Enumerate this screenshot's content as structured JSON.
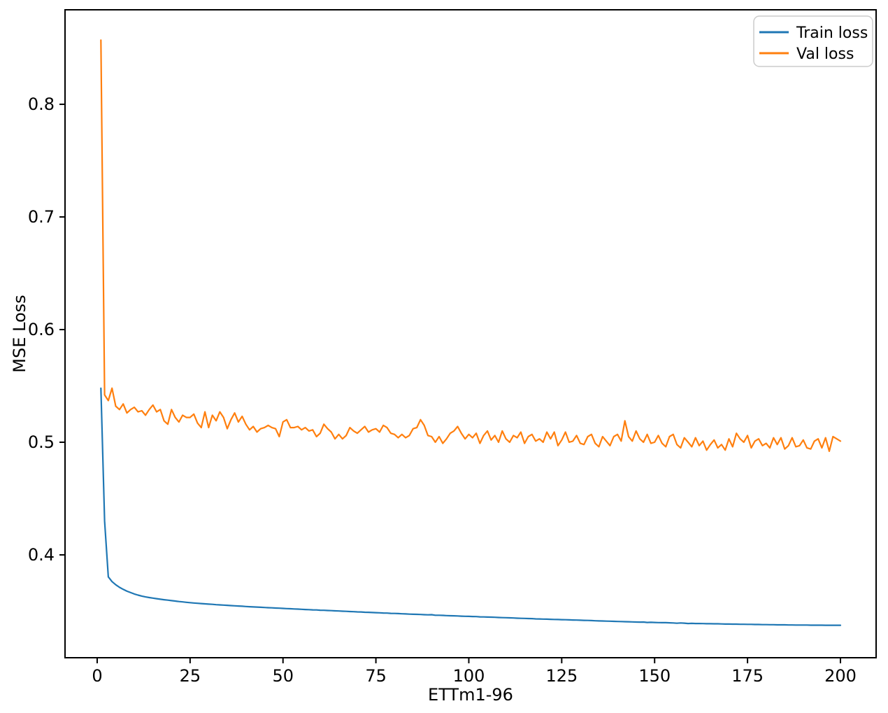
{
  "figure": {
    "background": "#ffffff",
    "text_color": "#000000",
    "spine_color": "#000000",
    "legend_border_color": "#cccccc"
  },
  "chart_data": {
    "type": "line",
    "title": "",
    "xlabel": "ETTm1-96",
    "ylabel": "MSE Loss",
    "xlim": [
      -8.65,
      209.6
    ],
    "ylim": [
      0.3087,
      0.8839
    ],
    "xticks": [
      0,
      25,
      50,
      75,
      100,
      125,
      150,
      175,
      200
    ],
    "yticks": [
      0.4,
      0.5,
      0.6,
      0.7,
      0.8
    ],
    "grid": false,
    "legend_position": "upper right",
    "x": {
      "start": 1,
      "step": 1,
      "count": 200
    },
    "series": [
      {
        "name": "Train loss",
        "color": "#1f77b4",
        "values": [
          0.548,
          0.43,
          0.3805,
          0.3763,
          0.3735,
          0.3712,
          0.3694,
          0.3678,
          0.3665,
          0.3653,
          0.3643,
          0.3634,
          0.3627,
          0.3621,
          0.3616,
          0.3611,
          0.3606,
          0.3602,
          0.3598,
          0.3594,
          0.359,
          0.3586,
          0.3583,
          0.3579,
          0.3576,
          0.3573,
          0.357,
          0.3568,
          0.3565,
          0.3563,
          0.3561,
          0.3558,
          0.3556,
          0.3554,
          0.3552,
          0.355,
          0.3548,
          0.3546,
          0.3544,
          0.3542,
          0.354,
          0.3538,
          0.3537,
          0.3535,
          0.3533,
          0.3531,
          0.353,
          0.3528,
          0.3527,
          0.3525,
          0.3523,
          0.3522,
          0.352,
          0.3519,
          0.3517,
          0.3515,
          0.3514,
          0.3512,
          0.3511,
          0.3509,
          0.3508,
          0.3506,
          0.3505,
          0.3503,
          0.3502,
          0.35,
          0.3499,
          0.3497,
          0.3496,
          0.3494,
          0.3493,
          0.3491,
          0.349,
          0.3488,
          0.3487,
          0.3486,
          0.3484,
          0.3483,
          0.3481,
          0.348,
          0.3479,
          0.3477,
          0.3476,
          0.3474,
          0.3473,
          0.3472,
          0.3471,
          0.3469,
          0.3468,
          0.3469,
          0.3464,
          0.3464,
          0.3463,
          0.3461,
          0.346,
          0.3459,
          0.3458,
          0.3456,
          0.3455,
          0.3454,
          0.3453,
          0.3452,
          0.345,
          0.3449,
          0.3448,
          0.3447,
          0.3446,
          0.3444,
          0.3443,
          0.3442,
          0.3441,
          0.344,
          0.3438,
          0.3437,
          0.3436,
          0.3435,
          0.3434,
          0.3432,
          0.3431,
          0.343,
          0.3429,
          0.3428,
          0.3427,
          0.3426,
          0.3425,
          0.3424,
          0.3423,
          0.3422,
          0.3421,
          0.342,
          0.3419,
          0.3418,
          0.3417,
          0.3415,
          0.3414,
          0.3413,
          0.3412,
          0.3411,
          0.341,
          0.3409,
          0.3408,
          0.3407,
          0.3406,
          0.3405,
          0.3404,
          0.3403,
          0.3404,
          0.34,
          0.3401,
          0.34,
          0.3399,
          0.3398,
          0.3398,
          0.3397,
          0.3396,
          0.3393,
          0.3396,
          0.3394,
          0.3391,
          0.3392,
          0.3391,
          0.3391,
          0.339,
          0.3389,
          0.3389,
          0.3388,
          0.3388,
          0.3387,
          0.3386,
          0.3386,
          0.3385,
          0.3385,
          0.3384,
          0.3384,
          0.3383,
          0.3383,
          0.3382,
          0.3382,
          0.3381,
          0.3381,
          0.338,
          0.338,
          0.3379,
          0.3379,
          0.3379,
          0.3378,
          0.3378,
          0.3377,
          0.3377,
          0.3377,
          0.3377,
          0.3376,
          0.3376,
          0.3376,
          0.3376,
          0.3375,
          0.3375,
          0.3375,
          0.3375,
          0.3375
        ]
      },
      {
        "name": "Val loss",
        "color": "#ff7f0e",
        "values": [
          0.857,
          0.542,
          0.537,
          0.548,
          0.532,
          0.529,
          0.534,
          0.526,
          0.529,
          0.531,
          0.527,
          0.528,
          0.524,
          0.529,
          0.533,
          0.527,
          0.529,
          0.519,
          0.516,
          0.529,
          0.522,
          0.518,
          0.524,
          0.522,
          0.522,
          0.525,
          0.517,
          0.513,
          0.527,
          0.513,
          0.524,
          0.519,
          0.527,
          0.522,
          0.512,
          0.52,
          0.526,
          0.518,
          0.523,
          0.516,
          0.511,
          0.514,
          0.509,
          0.512,
          0.513,
          0.515,
          0.513,
          0.512,
          0.505,
          0.518,
          0.52,
          0.513,
          0.513,
          0.514,
          0.511,
          0.513,
          0.51,
          0.511,
          0.505,
          0.508,
          0.516,
          0.512,
          0.509,
          0.503,
          0.507,
          0.503,
          0.506,
          0.513,
          0.51,
          0.508,
          0.511,
          0.514,
          0.509,
          0.511,
          0.512,
          0.509,
          0.515,
          0.513,
          0.508,
          0.507,
          0.504,
          0.507,
          0.504,
          0.506,
          0.512,
          0.513,
          0.52,
          0.515,
          0.506,
          0.505,
          0.5,
          0.505,
          0.499,
          0.503,
          0.508,
          0.51,
          0.514,
          0.508,
          0.503,
          0.507,
          0.504,
          0.508,
          0.499,
          0.506,
          0.51,
          0.502,
          0.506,
          0.5,
          0.51,
          0.503,
          0.5,
          0.506,
          0.504,
          0.509,
          0.499,
          0.505,
          0.507,
          0.501,
          0.503,
          0.5,
          0.509,
          0.503,
          0.509,
          0.497,
          0.502,
          0.509,
          0.5,
          0.501,
          0.506,
          0.499,
          0.498,
          0.505,
          0.507,
          0.499,
          0.496,
          0.505,
          0.501,
          0.497,
          0.505,
          0.507,
          0.501,
          0.519,
          0.505,
          0.501,
          0.51,
          0.503,
          0.5,
          0.507,
          0.499,
          0.5,
          0.506,
          0.499,
          0.496,
          0.505,
          0.507,
          0.498,
          0.495,
          0.504,
          0.5,
          0.496,
          0.504,
          0.497,
          0.501,
          0.493,
          0.498,
          0.502,
          0.495,
          0.498,
          0.493,
          0.503,
          0.496,
          0.508,
          0.503,
          0.5,
          0.506,
          0.495,
          0.501,
          0.503,
          0.497,
          0.499,
          0.495,
          0.504,
          0.498,
          0.504,
          0.494,
          0.497,
          0.504,
          0.496,
          0.497,
          0.502,
          0.495,
          0.494,
          0.501,
          0.503,
          0.495,
          0.504,
          0.492,
          0.505,
          0.503,
          0.501
        ]
      }
    ]
  }
}
